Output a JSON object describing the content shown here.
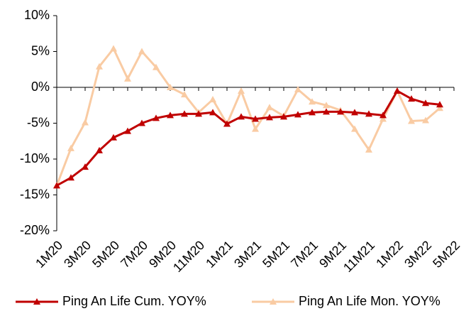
{
  "chart_data": {
    "type": "line",
    "categories": [
      "1M20",
      null,
      "3M20",
      null,
      "5M20",
      null,
      "7M20",
      null,
      "9M20",
      null,
      "11M20",
      null,
      "1M21",
      null,
      "3M21",
      null,
      "5M21",
      null,
      "7M21",
      null,
      "9M21",
      null,
      "11M21",
      null,
      "1M22",
      null,
      "3M22",
      null,
      "5M22"
    ],
    "series": [
      {
        "name": "Ping An Life Cum. YOY%",
        "color": "#c00000",
        "values": [
          -13.7,
          -12.6,
          -11.1,
          -8.8,
          -7.0,
          -6.1,
          -5.0,
          -4.3,
          -3.9,
          -3.7,
          -3.7,
          -3.5,
          -5.1,
          -4.1,
          -4.4,
          -4.2,
          -4.1,
          -3.8,
          -3.5,
          -3.4,
          -3.4,
          -3.5,
          -3.7,
          -3.9,
          -0.5,
          -1.6,
          -2.2,
          -2.4,
          null
        ]
      },
      {
        "name": "Ping An Life Mon. YOY%",
        "color": "#f9cba3",
        "values": [
          -13.7,
          -8.5,
          -4.9,
          2.9,
          5.4,
          1.2,
          5.0,
          2.8,
          0,
          -1.0,
          -3.5,
          -1.7,
          -5.1,
          -0.5,
          -5.8,
          -2.8,
          -4.0,
          -0.3,
          -2.0,
          -2.5,
          -3.2,
          -5.8,
          -8.7,
          -4.4,
          -0.5,
          -4.7,
          -4.6,
          -2.9,
          null
        ]
      }
    ],
    "ylim": [
      -20,
      10
    ],
    "yticks": [
      {
        "value": -20,
        "label": "-20%"
      },
      {
        "value": -15,
        "label": "-15%"
      },
      {
        "value": -10,
        "label": "-10%"
      },
      {
        "value": -5,
        "label": "-5%"
      },
      {
        "value": 0,
        "label": "0%"
      },
      {
        "value": 5,
        "label": "5%"
      },
      {
        "value": 10,
        "label": "10%"
      }
    ],
    "grid": false,
    "legend": "bottom"
  }
}
